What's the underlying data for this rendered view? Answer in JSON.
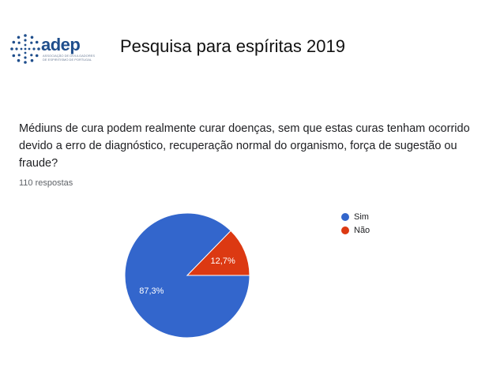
{
  "header": {
    "logo_text": "adep",
    "logo_subtitle": "ASSOCIAÇÃO DE DIVULGADORES DE ESPIRITISMO DE PORTUGAL",
    "title": "Pesquisa para espíritas  2019"
  },
  "survey": {
    "question": "Médiuns de cura podem realmente curar doenças, sem que estas curas tenham ocorrido devido a erro de diagnóstico, recuperação normal do organismo, força de sugestão ou fraude?",
    "responses_label": "110 respostas"
  },
  "chart_data": {
    "type": "pie",
    "slices": [
      {
        "label": "Sim",
        "value": 87.3,
        "display": "87,3%",
        "color": "#3366cc"
      },
      {
        "label": "Não",
        "value": 12.7,
        "display": "12,7%",
        "color": "#dc3912"
      }
    ],
    "legend_position": "right"
  }
}
